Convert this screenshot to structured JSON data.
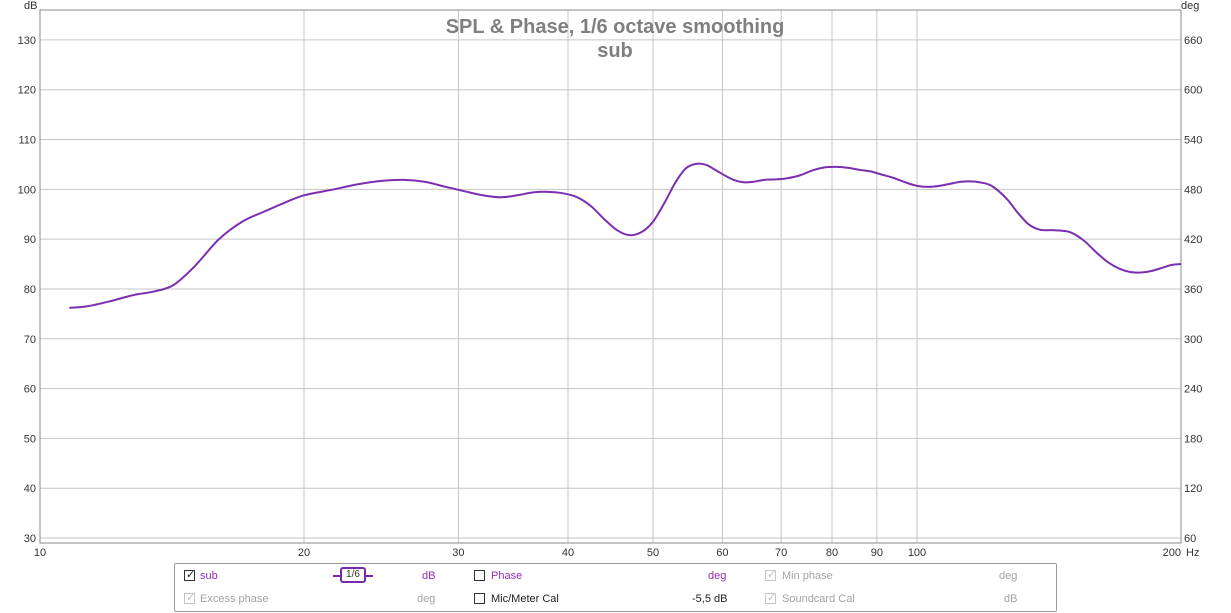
{
  "chart_data": {
    "type": "line",
    "title": "SPL & Phase, 1/6 octave smoothing",
    "subtitle": "sub",
    "xscale": "log",
    "xlim": [
      10,
      200
    ],
    "x_ticks": [
      "10",
      "20",
      "30",
      "40",
      "50",
      "60",
      "70",
      "80",
      "90",
      "100",
      "200"
    ],
    "x_unit": "Hz",
    "y_left_unit": "dB",
    "ylim": [
      29,
      136
    ],
    "y_ticks": [
      "30",
      "40",
      "50",
      "60",
      "70",
      "80",
      "90",
      "100",
      "110",
      "120",
      "130"
    ],
    "y_right_unit": "deg",
    "y_right_ticks": [
      "60",
      "120",
      "180",
      "240",
      "300",
      "360",
      "420",
      "480",
      "540",
      "600",
      "660"
    ],
    "grid": true,
    "line_color": "#7b2fb0",
    "series": [
      {
        "name": "sub",
        "x": [
          10.8,
          11.3,
          12.0,
          12.8,
          13.5,
          14.2,
          15.0,
          16.0,
          17.0,
          18.0,
          19.0,
          20.0,
          21.5,
          23.0,
          24.5,
          26.0,
          27.5,
          29.0,
          30.5,
          32.0,
          33.5,
          35.0,
          36.5,
          38.0,
          39.5,
          41.0,
          42.5,
          44.0,
          45.5,
          47.0,
          48.5,
          50.0,
          51.5,
          53.0,
          54.5,
          56.0,
          57.5,
          59.0,
          60.5,
          62.0,
          63.5,
          65.0,
          67.0,
          69.0,
          71.0,
          73.5,
          76.0,
          78.5,
          81.0,
          83.5,
          86.0,
          88.5,
          91.0,
          94.0,
          97.0,
          100.0,
          103.0,
          106.0,
          109.0,
          112.0,
          115.0,
          118.0,
          121.0,
          124.0,
          127.0,
          130.0,
          134.0,
          138.0,
          142.0,
          146.0,
          150.0,
          155.0,
          160.0,
          165.0,
          170.0,
          175.0,
          180.0,
          185.0,
          190.0,
          195.0,
          200.0
        ],
        "values": [
          76.2,
          76.5,
          77.5,
          78.8,
          79.5,
          80.8,
          84.5,
          90.0,
          93.5,
          95.5,
          97.3,
          98.8,
          99.9,
          101.0,
          101.7,
          101.9,
          101.5,
          100.5,
          99.6,
          98.8,
          98.4,
          98.8,
          99.4,
          99.5,
          99.2,
          98.4,
          96.6,
          94.0,
          91.8,
          90.8,
          91.4,
          93.5,
          97.2,
          101.3,
          104.2,
          105.1,
          104.9,
          103.8,
          102.7,
          101.8,
          101.4,
          101.5,
          101.9,
          102.0,
          102.2,
          102.8,
          103.8,
          104.4,
          104.5,
          104.3,
          103.9,
          103.6,
          103.0,
          102.3,
          101.4,
          100.7,
          100.5,
          100.7,
          101.1,
          101.5,
          101.6,
          101.4,
          100.9,
          99.6,
          97.8,
          95.5,
          93.0,
          91.9,
          91.8,
          91.7,
          91.3,
          89.7,
          87.4,
          85.4,
          84.1,
          83.4,
          83.3,
          83.6,
          84.2,
          84.8,
          85.0
        ]
      }
    ]
  },
  "legend": {
    "sub_label": "sub",
    "smoothing_label": "1/6",
    "sub_unit": "dB",
    "phase_label": "Phase",
    "phase_unit": "deg",
    "minphase_label": "Min phase",
    "minphase_unit": "deg",
    "excess_label": "Excess phase",
    "excess_unit": "deg",
    "mic_label": "Mic/Meter Cal",
    "mic_value": "-5,5 dB",
    "soundcard_label": "Soundcard Cal",
    "soundcard_unit": "dB",
    "checkmark": "✓"
  }
}
